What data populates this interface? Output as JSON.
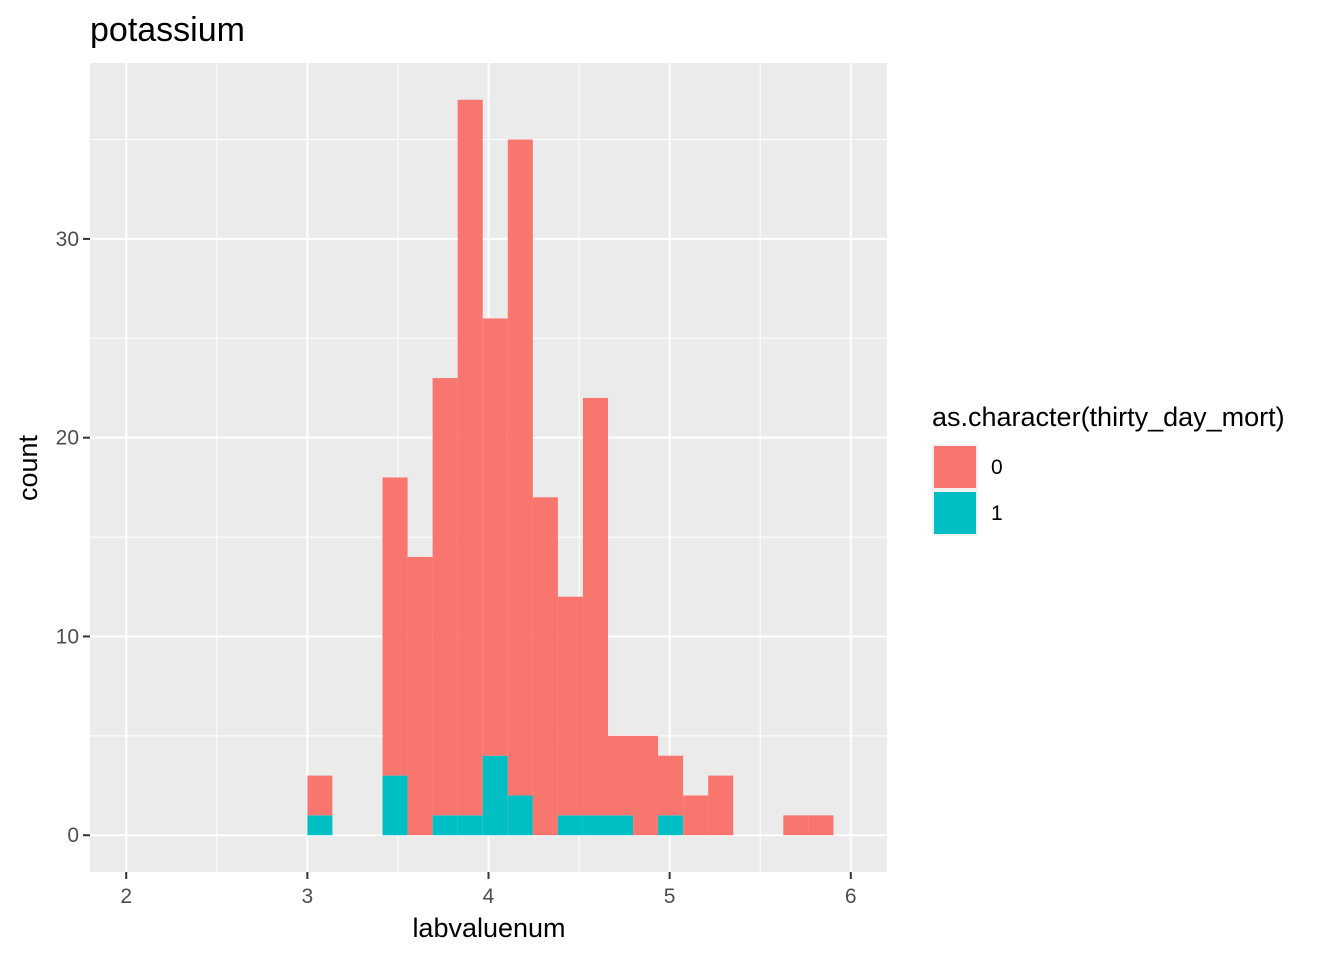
{
  "chart_data": {
    "type": "bar",
    "subtype": "stacked-histogram",
    "title": "potassium",
    "xlabel": "labvaluenum",
    "ylabel": "count",
    "xlim": [
      1.8,
      6.2
    ],
    "ylim": [
      -1.85,
      38.85
    ],
    "x_ticks": [
      "2",
      "3",
      "4",
      "5",
      "6"
    ],
    "y_ticks": [
      "0",
      "10",
      "20",
      "30"
    ],
    "bin_width": 0.1383,
    "grid": true,
    "legend_position": "right",
    "legend_title": "as.character(thirty_day_mort)",
    "colors": {
      "panel_bg": "#EBEBEB",
      "grid": "#FFFFFF",
      "series_0": "#F8766D",
      "series_1": "#00BFC4"
    },
    "bins": [
      {
        "x0": 3.0,
        "x1": 3.1383
      },
      {
        "x0": 3.1383,
        "x1": 3.2766
      },
      {
        "x0": 3.2766,
        "x1": 3.4149
      },
      {
        "x0": 3.4149,
        "x1": 3.5532
      },
      {
        "x0": 3.5532,
        "x1": 3.6915
      },
      {
        "x0": 3.6915,
        "x1": 3.8298
      },
      {
        "x0": 3.8298,
        "x1": 3.9681
      },
      {
        "x0": 3.9681,
        "x1": 4.1064
      },
      {
        "x0": 4.1064,
        "x1": 4.2447
      },
      {
        "x0": 4.2447,
        "x1": 4.383
      },
      {
        "x0": 4.383,
        "x1": 4.5213
      },
      {
        "x0": 4.5213,
        "x1": 4.6596
      },
      {
        "x0": 4.6596,
        "x1": 4.7979
      },
      {
        "x0": 4.7979,
        "x1": 4.9362
      },
      {
        "x0": 4.9362,
        "x1": 5.0745
      },
      {
        "x0": 5.0745,
        "x1": 5.2128
      },
      {
        "x0": 5.2128,
        "x1": 5.3511
      },
      {
        "x0": 5.3511,
        "x1": 5.4894
      },
      {
        "x0": 5.4894,
        "x1": 5.6277
      },
      {
        "x0": 5.6277,
        "x1": 5.766
      },
      {
        "x0": 5.766,
        "x1": 5.9043
      }
    ],
    "series": [
      {
        "name": "0",
        "values": [
          2,
          0,
          0,
          15,
          14,
          22,
          36,
          22,
          33,
          17,
          11,
          21,
          4,
          5,
          3,
          2,
          3,
          0,
          0,
          1,
          1
        ]
      },
      {
        "name": "1",
        "values": [
          1,
          0,
          0,
          3,
          0,
          1,
          1,
          4,
          2,
          0,
          1,
          1,
          1,
          0,
          1,
          0,
          0,
          0,
          0,
          0,
          0
        ]
      }
    ]
  }
}
